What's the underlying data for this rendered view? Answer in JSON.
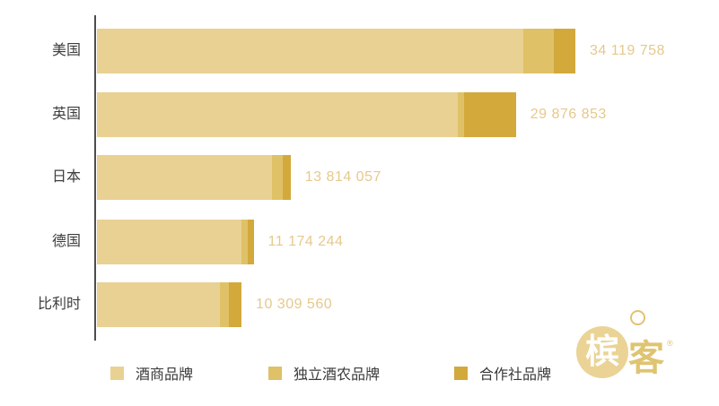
{
  "chart_data": {
    "type": "bar",
    "orientation": "horizontal",
    "stacked": true,
    "grid": false,
    "legend_position": "bottom",
    "categories": [
      "美国",
      "英国",
      "日本",
      "德国",
      "比利时"
    ],
    "series": [
      {
        "name": "酒商品牌",
        "color": "#e9d193",
        "values": [
          30400000,
          25730000,
          12500000,
          10300000,
          8770000
        ]
      },
      {
        "name": "独立酒农品牌",
        "color": "#dfc167",
        "values": [
          2180000,
          450000,
          770000,
          440000,
          640000
        ]
      },
      {
        "name": "合作社品牌",
        "color": "#d3a93c",
        "values": [
          1539758,
          3696853,
          544057,
          434244,
          899560
        ]
      }
    ],
    "totals": [
      34119758,
      29876853,
      13814057,
      11174244,
      10309560
    ],
    "total_labels": [
      "34 119 758",
      "29 876 853",
      "13 814 057",
      "11 174 244",
      "10 309 560"
    ],
    "xlim": [
      0,
      34119758
    ],
    "title": "",
    "xlabel": "",
    "ylabel": ""
  },
  "legend": {
    "items": [
      {
        "label": "酒商品牌",
        "color": "#e9d193"
      },
      {
        "label": "独立酒农品牌",
        "color": "#dfc167"
      },
      {
        "label": "合作社品牌",
        "color": "#d3a93c"
      }
    ]
  },
  "logo": {
    "inner_char": "槟",
    "outer_char": "客",
    "registered_mark": "®",
    "circle_color": "#ead395",
    "accent_color": "#dfc472"
  },
  "colors": {
    "background": "#ffffff",
    "axis": "#4d4d4d",
    "category_label": "#3d3d3d",
    "value_label": "#e6c98c"
  }
}
